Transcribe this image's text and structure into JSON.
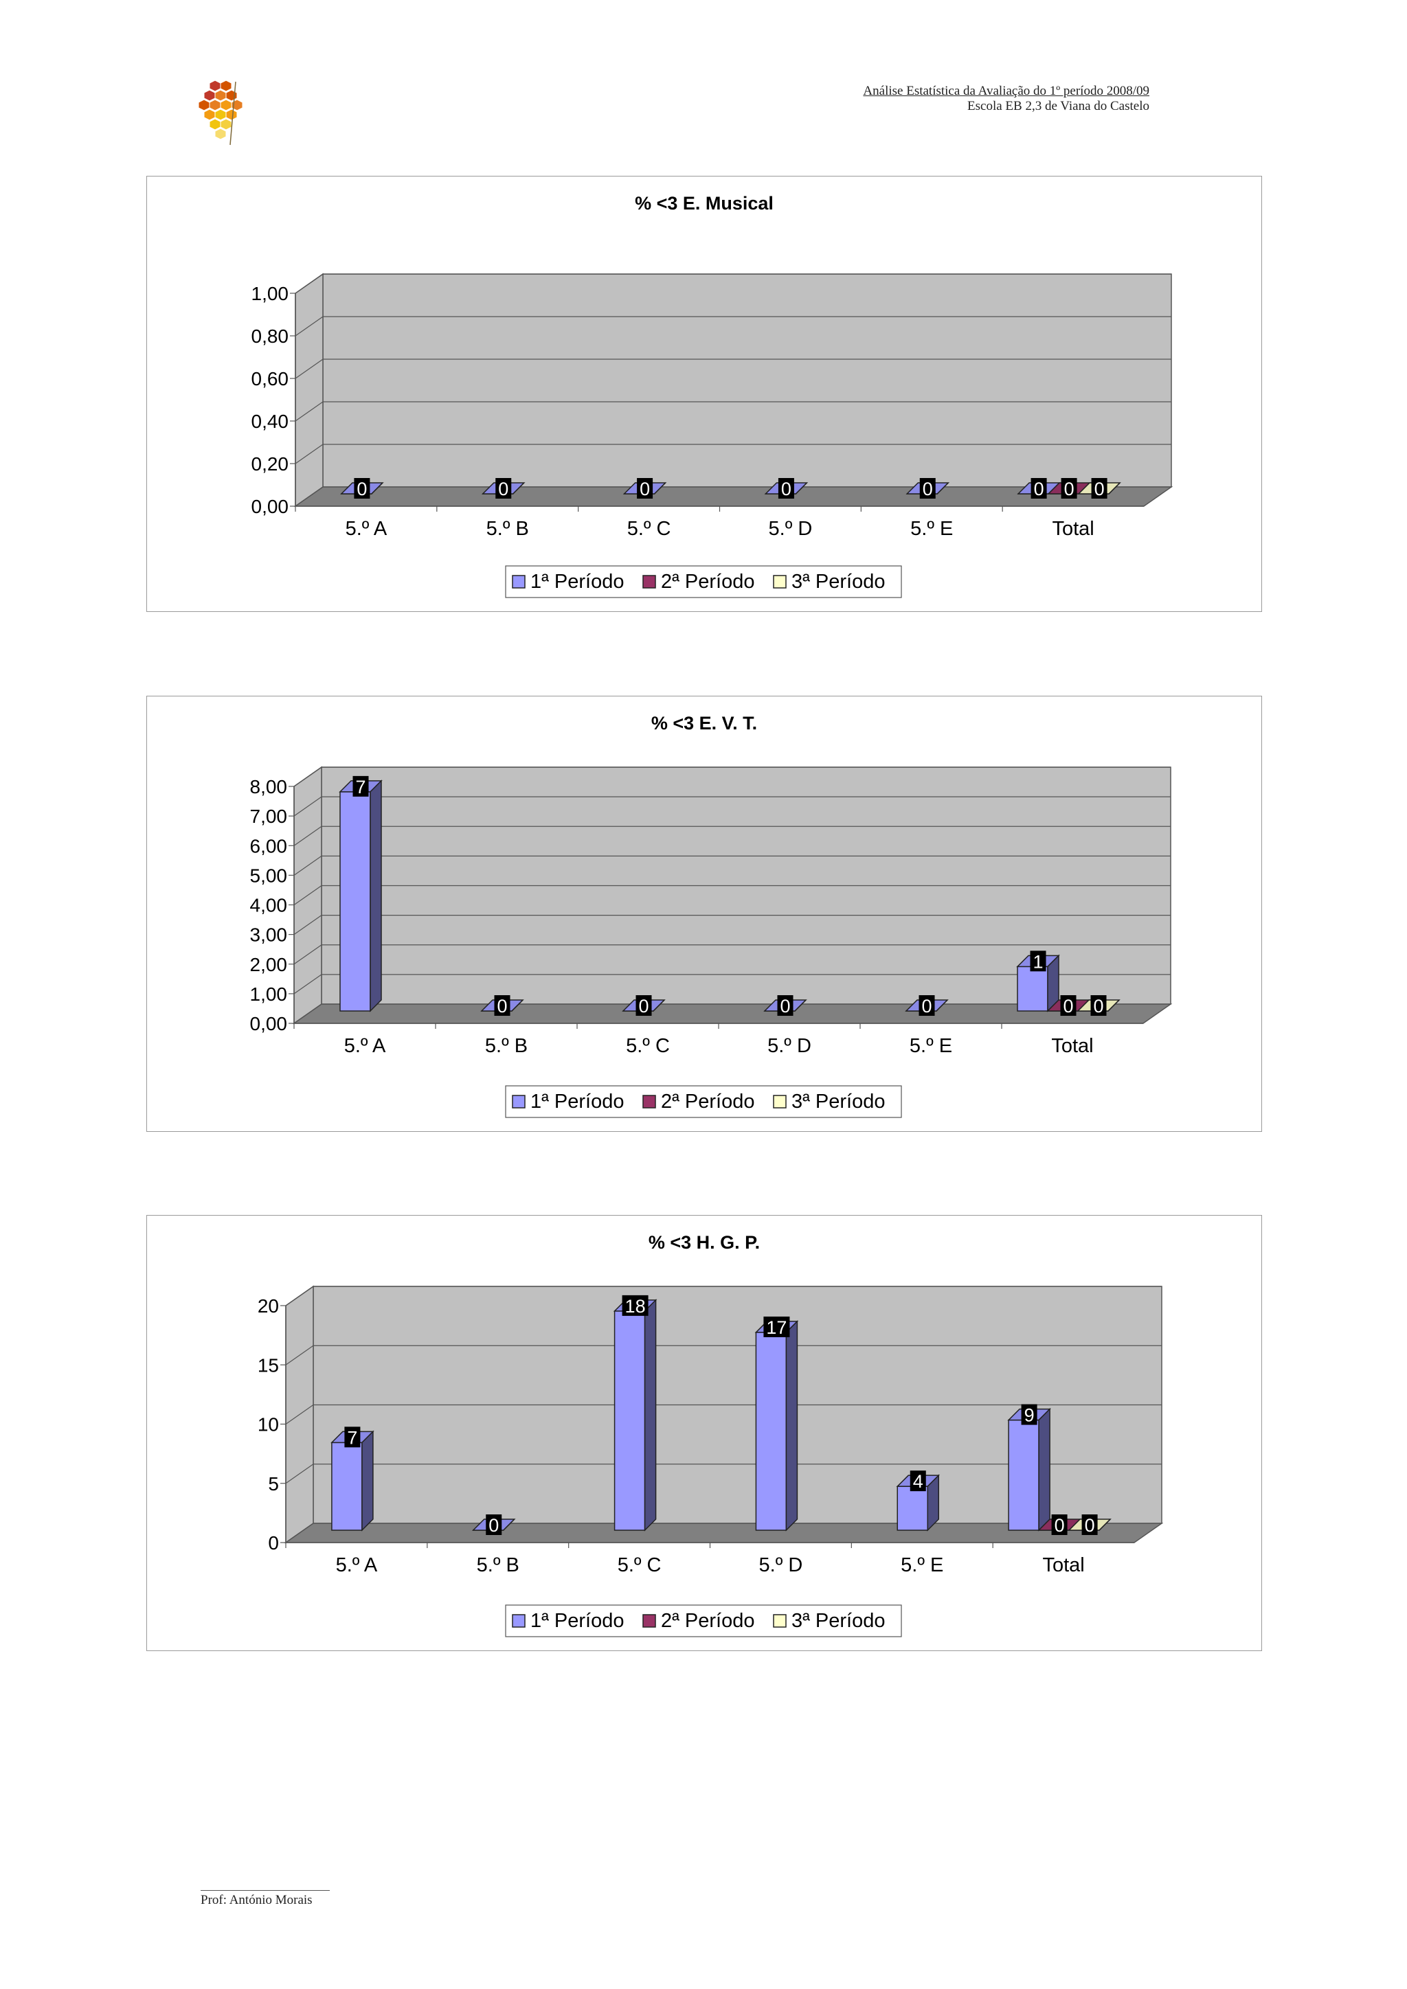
{
  "header": {
    "line1": "Análise Estatística da Avaliação do 1º período 2008/09",
    "line2": "Escola EB 2,3 de Viana do Castelo"
  },
  "footer": {
    "author": "Prof: António Morais"
  },
  "colors": {
    "p1": "#9999ff",
    "p2": "#993366",
    "p3": "#ffffcc",
    "wall": "#c0c0c0",
    "floor": "#808080"
  },
  "chart_data": [
    {
      "type": "bar",
      "title": "%  <3 E. Musical",
      "categories": [
        "5.º A",
        "5.º B",
        "5.º C",
        "5.º D",
        "5.º E",
        "Total"
      ],
      "ytick_labels": [
        "0,00",
        "0,20",
        "0,40",
        "0,60",
        "0,80",
        "1,00"
      ],
      "ylim": [
        0,
        1
      ],
      "legend": [
        "1ª Período",
        "2ª Período",
        "3ª Período"
      ],
      "series": [
        {
          "name": "1ª Período",
          "values": [
            0,
            0,
            0,
            0,
            0,
            0
          ],
          "labels": [
            "0",
            "0",
            "0",
            "0",
            "0",
            "0"
          ]
        },
        {
          "name": "2ª Período",
          "values": [
            null,
            null,
            null,
            null,
            null,
            0
          ],
          "labels": [
            "",
            "",
            "",
            "",
            "",
            "0"
          ]
        },
        {
          "name": "3ª Período",
          "values": [
            null,
            null,
            null,
            null,
            null,
            0
          ],
          "labels": [
            "",
            "",
            "",
            "",
            "",
            "0"
          ]
        }
      ]
    },
    {
      "type": "bar",
      "title": "%  <3 E. V. T.",
      "categories": [
        "5.º A",
        "5.º B",
        "5.º C",
        "5.º D",
        "5.º E",
        "Total"
      ],
      "ytick_labels": [
        "0,00",
        "1,00",
        "2,00",
        "3,00",
        "4,00",
        "5,00",
        "6,00",
        "7,00",
        "8,00"
      ],
      "ylim": [
        0,
        8
      ],
      "legend": [
        "1ª Período",
        "2ª Período",
        "3ª Período"
      ],
      "series": [
        {
          "name": "1ª Período",
          "values": [
            7.4,
            0,
            0,
            0,
            0,
            1.5
          ],
          "labels": [
            "7",
            "0",
            "0",
            "0",
            "0",
            "1"
          ]
        },
        {
          "name": "2ª Período",
          "values": [
            null,
            null,
            null,
            null,
            null,
            0
          ],
          "labels": [
            "",
            "",
            "",
            "",
            "",
            "0"
          ]
        },
        {
          "name": "3ª Período",
          "values": [
            null,
            null,
            null,
            null,
            null,
            0
          ],
          "labels": [
            "",
            "",
            "",
            "",
            "",
            "0"
          ]
        }
      ]
    },
    {
      "type": "bar",
      "title": "%  <3 H. G. P.",
      "categories": [
        "5.º A",
        "5.º B",
        "5.º C",
        "5.º D",
        "5.º E",
        "Total"
      ],
      "ytick_labels": [
        "0",
        "5",
        "10",
        "15",
        "20"
      ],
      "ylim": [
        0,
        20
      ],
      "legend": [
        "1ª Período",
        "2ª Período",
        "3ª Período"
      ],
      "series": [
        {
          "name": "1ª Período",
          "values": [
            7.4,
            0,
            18.5,
            16.7,
            3.7,
            9.3
          ],
          "labels": [
            "7",
            "0",
            "18",
            "17",
            "4",
            "9"
          ]
        },
        {
          "name": "2ª Período",
          "values": [
            null,
            null,
            null,
            null,
            null,
            0
          ],
          "labels": [
            "",
            "",
            "",
            "",
            "",
            "0"
          ]
        },
        {
          "name": "3ª Período",
          "values": [
            null,
            null,
            null,
            null,
            null,
            0
          ],
          "labels": [
            "",
            "",
            "",
            "",
            "",
            "0"
          ]
        }
      ]
    }
  ]
}
